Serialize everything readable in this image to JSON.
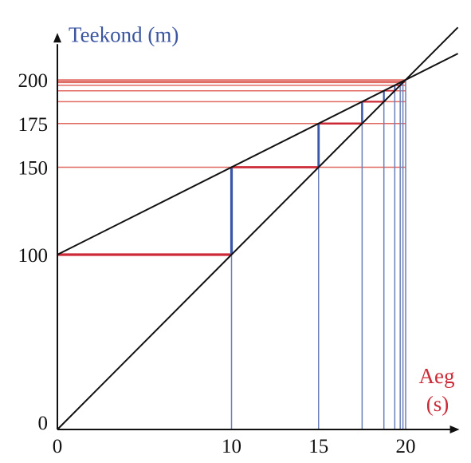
{
  "chart_data": {
    "type": "line",
    "title": "",
    "ylabel": "Teekond (m)",
    "xlabel_line1": "Aeg",
    "xlabel_line2": "(s)",
    "x_ticks": [
      0,
      10,
      15,
      20
    ],
    "y_ticks": [
      0,
      100,
      150,
      175,
      200
    ],
    "x_tick_labels": [
      "0",
      "10",
      "15",
      "20"
    ],
    "y_tick_labels": [
      "0",
      "100",
      "150",
      "175",
      "200"
    ],
    "xlim": [
      0,
      23
    ],
    "ylim": [
      0,
      225
    ],
    "grid": false,
    "series": [
      {
        "x": [
          0,
          23
        ],
        "y": [
          0,
          230
        ]
      },
      {
        "x": [
          0,
          23
        ],
        "y": [
          100,
          215
        ]
      }
    ],
    "steps": [
      {
        "t0": 0,
        "t1": 10,
        "d0": 100,
        "d1": 150
      },
      {
        "t0": 10,
        "t1": 15,
        "d0": 150,
        "d1": 175
      },
      {
        "t0": 15,
        "t1": 17.5,
        "d0": 175,
        "d1": 187.5
      },
      {
        "t0": 17.5,
        "t1": 18.75,
        "d0": 187.5,
        "d1": 193.75
      },
      {
        "t0": 18.75,
        "t1": 19.375,
        "d0": 193.75,
        "d1": 196.875
      },
      {
        "t0": 19.375,
        "t1": 19.6875,
        "d0": 196.875,
        "d1": 198.4375
      },
      {
        "t0": 19.6875,
        "t1": 19.84375,
        "d0": 198.4375,
        "d1": 199.21875
      }
    ],
    "colors": {
      "axis": "#111111",
      "lines": "#111111",
      "horizontal": "#cc2a36",
      "vertical": "#3a56a8",
      "guide_red": "#e06a63",
      "guide_blue": "#6b7fb8",
      "ylabel": "#3b55a0",
      "xlabel": "#cc2a36"
    }
  }
}
